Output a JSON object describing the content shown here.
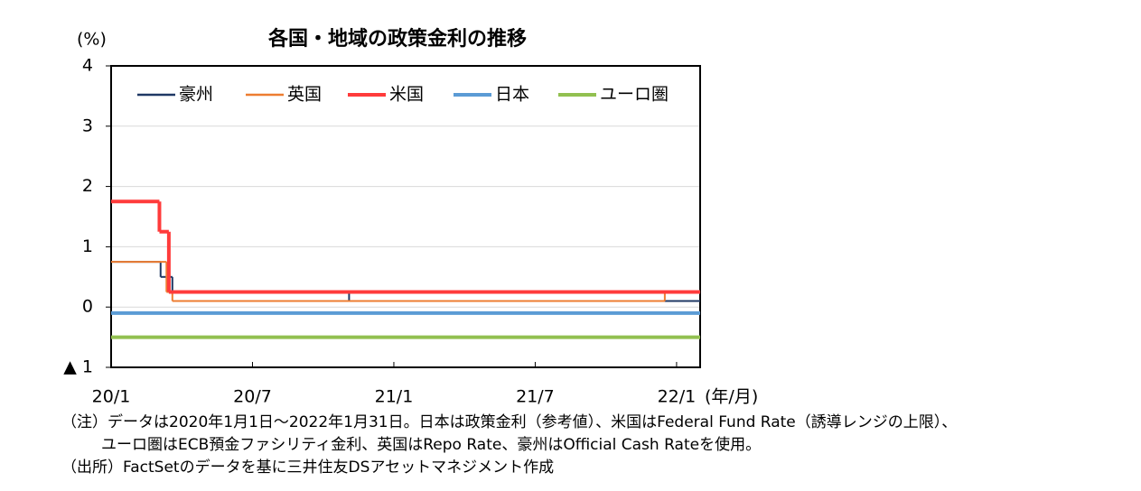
{
  "chart_data": {
    "type": "line",
    "step": "post",
    "title": "各国・地域の政策金利の推移",
    "y_label": "(%)",
    "x_label": "(年/月)",
    "xlim": [
      0,
      25
    ],
    "xticks": [
      {
        "value": 0,
        "label": "20/1"
      },
      {
        "value": 6,
        "label": "20/7"
      },
      {
        "value": 12,
        "label": "21/1"
      },
      {
        "value": 18,
        "label": "21/7"
      },
      {
        "value": 24,
        "label": "22/1"
      }
    ],
    "ylim": [
      -1,
      4
    ],
    "yticks": [
      {
        "value": -1,
        "label": "▲ 1"
      },
      0,
      1,
      2,
      3,
      4
    ],
    "grid": true,
    "legend": "top",
    "series": [
      {
        "name": "豪州",
        "color": "#1f3864",
        "x": [
          0,
          2.1,
          2.6,
          10.1,
          25
        ],
        "values": [
          0.75,
          0.5,
          0.25,
          0.1,
          0.1
        ]
      },
      {
        "name": "英国",
        "color": "#ed7d31",
        "x": [
          0,
          2.35,
          2.6,
          23.5,
          25
        ],
        "values": [
          0.75,
          0.25,
          0.1,
          0.25,
          0.25
        ]
      },
      {
        "name": "米国",
        "color": "#ff3b3b",
        "x": [
          0,
          2.05,
          2.45,
          25
        ],
        "values": [
          1.75,
          1.25,
          0.25,
          0.25
        ]
      },
      {
        "name": "日本",
        "color": "#5b9bd5",
        "x": [
          0,
          25
        ],
        "values": [
          -0.1,
          -0.1
        ]
      },
      {
        "name": "ユーロ圏",
        "color": "#92c050",
        "x": [
          0,
          25
        ],
        "values": [
          -0.5,
          -0.5
        ]
      }
    ],
    "notes": [
      "（注）データは2020年1月1日～2022年1月31日。日本は政策金利（参考値）、米国はFederal Fund Rate（誘導レンジの上限）、",
      "ユーロ圏はECB預金ファシリティ金利、英国はRepo Rate、豪州はOfficial Cash Rateを使用。",
      "（出所）FactSetのデータを基に三井住友DSアセットマネジメント作成"
    ]
  }
}
